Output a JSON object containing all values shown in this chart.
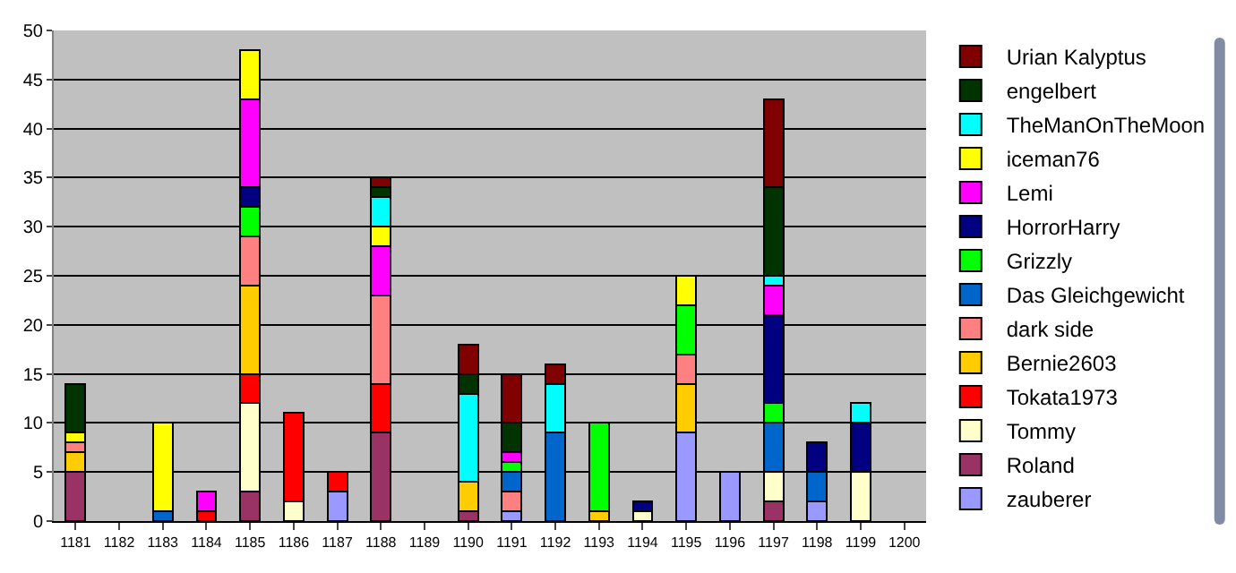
{
  "chart_data": {
    "type": "bar",
    "stacked": true,
    "categories": [
      "1181",
      "1182",
      "1183",
      "1184",
      "1185",
      "1186",
      "1187",
      "1188",
      "1189",
      "1190",
      "1191",
      "1192",
      "1193",
      "1194",
      "1195",
      "1196",
      "1197",
      "1198",
      "1199",
      "1200"
    ],
    "ylim": [
      0,
      50
    ],
    "yticks": [
      0,
      5,
      10,
      15,
      20,
      25,
      30,
      35,
      40,
      45,
      50
    ],
    "grid": "y",
    "legend": "right",
    "series": [
      {
        "name": "zauberer",
        "color": "#9999ff",
        "values": [
          null,
          null,
          null,
          null,
          null,
          null,
          3,
          null,
          null,
          null,
          1,
          null,
          null,
          null,
          9,
          5,
          null,
          2,
          null,
          null
        ]
      },
      {
        "name": "Roland",
        "color": "#993366",
        "values": [
          5,
          null,
          null,
          null,
          3,
          null,
          null,
          9,
          null,
          1,
          null,
          null,
          null,
          null,
          null,
          null,
          2,
          null,
          null,
          null
        ]
      },
      {
        "name": "Tommy",
        "color": "#ffffcc",
        "values": [
          null,
          null,
          null,
          null,
          9,
          2,
          null,
          null,
          null,
          null,
          null,
          null,
          null,
          1,
          null,
          null,
          3,
          null,
          5,
          null
        ]
      },
      {
        "name": "Tokata1973",
        "color": "#ff0000",
        "values": [
          null,
          null,
          null,
          1,
          3,
          9,
          2,
          5,
          null,
          null,
          null,
          null,
          null,
          null,
          null,
          null,
          null,
          null,
          null,
          null
        ]
      },
      {
        "name": "Bernie2603",
        "color": "#ffcc00",
        "values": [
          2,
          null,
          null,
          null,
          9,
          null,
          null,
          null,
          null,
          3,
          null,
          null,
          1,
          null,
          5,
          null,
          null,
          null,
          null,
          null
        ]
      },
      {
        "name": "dark side",
        "color": "#ff8080",
        "values": [
          1,
          null,
          null,
          null,
          5,
          null,
          null,
          9,
          null,
          null,
          2,
          null,
          null,
          null,
          3,
          null,
          null,
          null,
          null,
          null
        ]
      },
      {
        "name": "Das Gleichgewicht",
        "color": "#0066cc",
        "values": [
          null,
          null,
          1,
          null,
          null,
          null,
          null,
          null,
          null,
          null,
          2,
          9,
          null,
          null,
          null,
          null,
          5,
          3,
          null,
          null
        ]
      },
      {
        "name": "Grizzly",
        "color": "#00ff00",
        "values": [
          null,
          null,
          null,
          null,
          3,
          null,
          null,
          null,
          null,
          null,
          1,
          null,
          9,
          null,
          5,
          null,
          2,
          null,
          null,
          null
        ]
      },
      {
        "name": "HorrorHarry",
        "color": "#000080",
        "values": [
          null,
          null,
          null,
          null,
          2,
          null,
          null,
          null,
          null,
          null,
          null,
          null,
          null,
          1,
          null,
          null,
          9,
          3,
          5,
          null
        ]
      },
      {
        "name": "Lemi",
        "color": "#ff00ff",
        "values": [
          null,
          null,
          null,
          2,
          9,
          null,
          null,
          5,
          null,
          null,
          1,
          null,
          null,
          null,
          null,
          null,
          3,
          null,
          null,
          null
        ]
      },
      {
        "name": "iceman76",
        "color": "#ffff00",
        "values": [
          1,
          null,
          9,
          null,
          5,
          null,
          null,
          2,
          null,
          null,
          null,
          null,
          null,
          null,
          3,
          null,
          null,
          null,
          null,
          null
        ]
      },
      {
        "name": "TheManOnTheMoon",
        "color": "#00ffff",
        "values": [
          null,
          null,
          null,
          null,
          null,
          null,
          null,
          3,
          null,
          9,
          null,
          5,
          null,
          null,
          null,
          null,
          1,
          null,
          2,
          null
        ]
      },
      {
        "name": "engelbert",
        "color": "#003300",
        "values": [
          5,
          null,
          null,
          null,
          null,
          null,
          null,
          1,
          null,
          2,
          3,
          null,
          null,
          null,
          null,
          null,
          9,
          null,
          null,
          null
        ]
      },
      {
        "name": "Urian Kalyptus",
        "color": "#800000",
        "values": [
          null,
          null,
          null,
          null,
          null,
          null,
          null,
          1,
          null,
          3,
          5,
          2,
          null,
          null,
          null,
          null,
          9,
          null,
          null,
          null
        ]
      }
    ]
  }
}
